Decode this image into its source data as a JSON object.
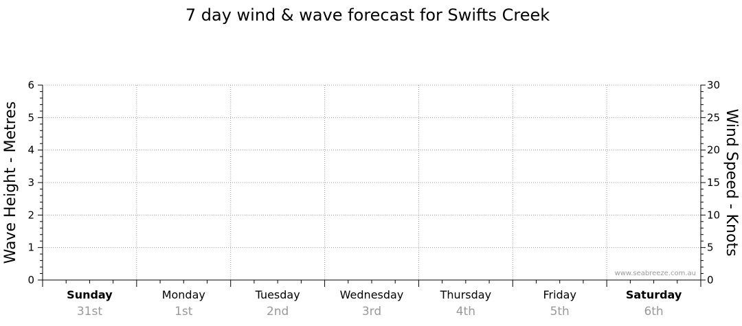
{
  "chart_data": {
    "type": "line",
    "title": "7 day wind & wave forecast for Swifts Creek",
    "ylabel_left": "Wave Height - Metres",
    "ylabel_right": "Wind Speed - Knots",
    "ylim_left": [
      0,
      6
    ],
    "ylim_right": [
      0,
      30
    ],
    "yticks_left": [
      "0",
      "1",
      "2",
      "3",
      "4",
      "5",
      "6"
    ],
    "yticks_right": [
      "0",
      "5",
      "10",
      "15",
      "20",
      "25",
      "30"
    ],
    "days": [
      {
        "name": "Sunday",
        "date": "31st",
        "bold": true
      },
      {
        "name": "Monday",
        "date": "1st",
        "bold": false
      },
      {
        "name": "Tuesday",
        "date": "2nd",
        "bold": false
      },
      {
        "name": "Wednesday",
        "date": "3rd",
        "bold": false
      },
      {
        "name": "Thursday",
        "date": "4th",
        "bold": false
      },
      {
        "name": "Friday",
        "date": "5th",
        "bold": false
      },
      {
        "name": "Saturday",
        "date": "6th",
        "bold": true
      }
    ],
    "series": [],
    "grid": true,
    "watermark": "www.seabreeze.com.au"
  }
}
